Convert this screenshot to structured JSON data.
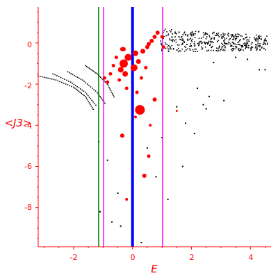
{
  "chart_data": {
    "type": "scatter",
    "title": "",
    "xlabel": "E",
    "ylabel": "<J3>",
    "xlim": [
      -3.2,
      4.7
    ],
    "ylim": [
      -9.9,
      1.75
    ],
    "x_ticks": [
      "-2",
      "0",
      "2",
      "4"
    ],
    "y_ticks": [
      "0",
      "-2",
      "-4",
      "-6",
      "-8"
    ],
    "grid": false,
    "legend": "none",
    "colors": {
      "axis": "#ff0000",
      "points": "#000000",
      "highlight": "#ff0000",
      "line_green": "#008000",
      "line_magenta": "#ff00ff",
      "line_blue": "#0000ff"
    },
    "vertical_lines": [
      {
        "x": -1.15,
        "color": "#008000",
        "width": 1.5
      },
      {
        "x": -0.98,
        "color": "#ff00ff",
        "width": 1.5
      },
      {
        "x": 0.0,
        "color": "#0000ff",
        "width": 4
      },
      {
        "x": 1.02,
        "color": "#ff00ff",
        "width": 1.5
      }
    ],
    "band_series": [
      {
        "name": "band1",
        "x": [
          -3.2,
          -2.6,
          -2.0,
          -1.6,
          -1.3
        ],
        "y": [
          -1.6,
          -1.8,
          -2.15,
          -2.6,
          -3.3
        ]
      },
      {
        "name": "band2",
        "x": [
          -2.7,
          -2.1,
          -1.6,
          -1.2
        ],
        "y": [
          -1.5,
          -1.9,
          -2.4,
          -3.1
        ]
      },
      {
        "name": "band3",
        "x": [
          -2.2,
          -1.7,
          -1.2,
          -0.9
        ],
        "y": [
          -1.4,
          -1.8,
          -2.4,
          -3.0
        ]
      },
      {
        "name": "band4",
        "x": [
          -1.6,
          -1.2,
          -0.85,
          -0.6
        ],
        "y": [
          -1.1,
          -1.5,
          -2.0,
          -2.7
        ]
      }
    ],
    "upper_band": {
      "x_range": [
        0.95,
        4.6
      ],
      "y_range": [
        -0.45,
        0.7
      ],
      "count": 420
    },
    "black_scatter": [
      {
        "x": -1.15,
        "y": -4.8
      },
      {
        "x": -0.85,
        "y": -5.7
      },
      {
        "x": -1.1,
        "y": -8.2
      },
      {
        "x": -0.7,
        "y": -8.7
      },
      {
        "x": -0.4,
        "y": -8.9
      },
      {
        "x": -0.5,
        "y": -7.3
      },
      {
        "x": 0.5,
        "y": -5.1
      },
      {
        "x": 0.8,
        "y": -6.5
      },
      {
        "x": 1.2,
        "y": -7.6
      },
      {
        "x": 1.7,
        "y": -6.0
      },
      {
        "x": 2.1,
        "y": -4.4
      },
      {
        "x": 2.5,
        "y": -3.2
      },
      {
        "x": 2.6,
        "y": -2.6
      },
      {
        "x": 1.5,
        "y": -3.1
      },
      {
        "x": 1.0,
        "y": -4.6
      },
      {
        "x": 0.3,
        "y": -9.7
      },
      {
        "x": 1.8,
        "y": -3.9
      },
      {
        "x": 2.4,
        "y": -3.0
      },
      {
        "x": 3.1,
        "y": -2.8
      },
      {
        "x": 2.2,
        "y": -2.2
      },
      {
        "x": 4.3,
        "y": -1.3
      },
      {
        "x": 4.5,
        "y": -1.3
      },
      {
        "x": 2.75,
        "y": -0.95
      },
      {
        "x": 3.5,
        "y": -0.7
      },
      {
        "x": 3.9,
        "y": -0.8
      }
    ],
    "red_scatter": [
      {
        "x": 0.25,
        "y": -3.25,
        "size": 7
      },
      {
        "x": -0.3,
        "y": -1.0,
        "size": 6
      },
      {
        "x": -0.15,
        "y": -0.7,
        "size": 5
      },
      {
        "x": 0.05,
        "y": -1.2,
        "size": 5
      },
      {
        "x": 0.1,
        "y": -0.5,
        "size": 4
      },
      {
        "x": -0.4,
        "y": -1.3,
        "size": 4
      },
      {
        "x": -0.25,
        "y": -1.5,
        "size": 4
      },
      {
        "x": 0.2,
        "y": -0.9,
        "size": 3.5
      },
      {
        "x": 0.35,
        "y": -0.4,
        "size": 3.5
      },
      {
        "x": 0.5,
        "y": -0.2,
        "size": 3
      },
      {
        "x": 0.55,
        "y": -0.05,
        "size": 3
      },
      {
        "x": 0.65,
        "y": 0.1,
        "size": 3
      },
      {
        "x": 0.75,
        "y": 0.3,
        "size": 3
      },
      {
        "x": 0.85,
        "y": 0.5,
        "size": 3
      },
      {
        "x": -0.35,
        "y": -0.3,
        "size": 3
      },
      {
        "x": -0.55,
        "y": -0.7,
        "size": 2.5
      },
      {
        "x": -0.65,
        "y": -1.1,
        "size": 2.5
      },
      {
        "x": -0.75,
        "y": -1.5,
        "size": 2.5
      },
      {
        "x": -0.85,
        "y": -1.9,
        "size": 2.5
      },
      {
        "x": -0.95,
        "y": -1.7,
        "size": 2.5
      },
      {
        "x": -0.45,
        "y": -1.8,
        "size": 2.5
      },
      {
        "x": -0.2,
        "y": -2.2,
        "size": 2.5
      },
      {
        "x": 0.15,
        "y": -2.4,
        "size": 2.5
      },
      {
        "x": 0.3,
        "y": -1.7,
        "size": 2.5
      },
      {
        "x": 0.45,
        "y": -1.2,
        "size": 2.5
      },
      {
        "x": -0.35,
        "y": -4.5,
        "size": 3
      },
      {
        "x": 0.75,
        "y": -2.75,
        "size": 3
      },
      {
        "x": 0.4,
        "y": -6.45,
        "size": 3
      },
      {
        "x": 0.55,
        "y": -5.5,
        "size": 2.5
      },
      {
        "x": -0.2,
        "y": -7.6,
        "size": 2
      },
      {
        "x": 0.6,
        "y": -4.0,
        "size": 2
      },
      {
        "x": -0.3,
        "y": -0.3,
        "size": 3
      },
      {
        "x": 1.0,
        "y": 0.3,
        "size": 2.5
      },
      {
        "x": 1.05,
        "y": -0.2,
        "size": 2.5
      },
      {
        "x": 1.5,
        "y": -3.3,
        "size": 1.5
      },
      {
        "x": 0.1,
        "y": -3.6,
        "size": 2
      }
    ]
  }
}
